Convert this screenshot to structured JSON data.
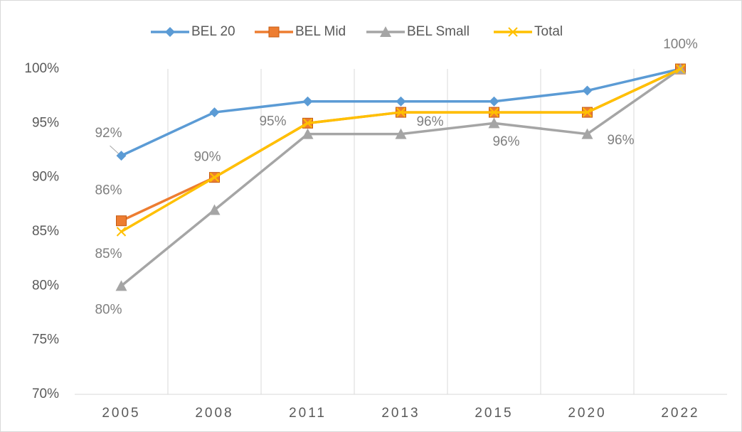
{
  "chart_data": {
    "type": "line",
    "categories": [
      "2005",
      "2008",
      "2011",
      "2013",
      "2015",
      "2020",
      "2022"
    ],
    "series": [
      {
        "name": "BEL 20",
        "color": "#5b9bd5",
        "marker": "diamond",
        "values": [
          92,
          96,
          97,
          97,
          97,
          98,
          100
        ],
        "value_labels": [
          "92%",
          null,
          null,
          null,
          null,
          null,
          null
        ]
      },
      {
        "name": "BEL Mid",
        "color": "#ed7d31",
        "marker": "square",
        "values": [
          86,
          90,
          95,
          96,
          96,
          96,
          100
        ],
        "value_labels": [
          "86%",
          null,
          null,
          null,
          null,
          null,
          null
        ]
      },
      {
        "name": "BEL Small",
        "color": "#a5a5a5",
        "marker": "triangle",
        "values": [
          80,
          87,
          94,
          94,
          95,
          94,
          100
        ],
        "value_labels": [
          "80%",
          null,
          null,
          null,
          null,
          null,
          null
        ]
      },
      {
        "name": "Total",
        "color": "#ffc000",
        "marker": "x",
        "values": [
          85,
          90,
          95,
          96,
          96,
          96,
          100
        ],
        "value_labels": [
          "85%",
          "90%",
          "95%",
          "96%",
          "96%",
          "96%",
          "100%"
        ]
      }
    ],
    "ylim": [
      70,
      100
    ],
    "yticks": [
      {
        "value": 70,
        "label": "70%"
      },
      {
        "value": 75,
        "label": "75%"
      },
      {
        "value": 80,
        "label": "80%"
      },
      {
        "value": 85,
        "label": "85%"
      },
      {
        "value": 90,
        "label": "90%"
      },
      {
        "value": 95,
        "label": "95%"
      },
      {
        "value": 100,
        "label": "100%"
      }
    ],
    "legend": "top"
  }
}
